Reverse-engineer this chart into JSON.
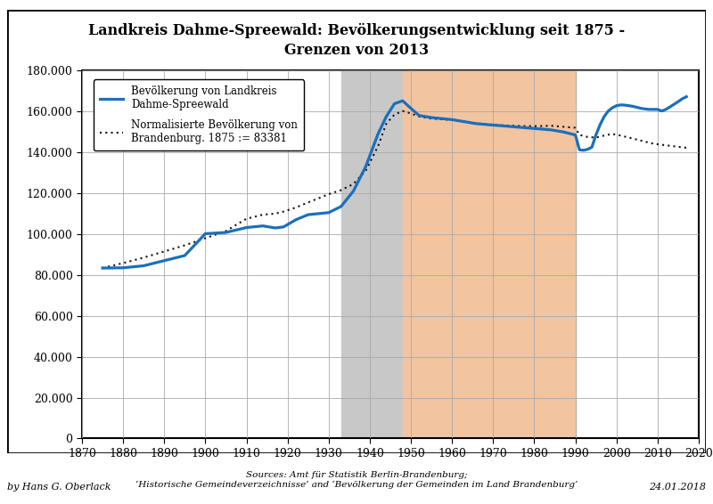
{
  "title": "Landkreis Dahme-Spreewald: Bevölkerungsentwicklung seit 1875 -\nGrenzen von 2013",
  "legend_line1": "Bevölkerung von Landkreis\nDahme-Spreewald",
  "legend_line2": "Normalisierte Bevölkerung von\nBrandenburg. 1875 := 83381",
  "source_text": "Sources: Amt für Statistik Berlin-Brandenburg;\n‘Historische Gemeindeverzeichnisse’ and ‘Bevölkerung der Gemeinden im Land Brandenburg’",
  "author_text": "by Hans G. Oberlack",
  "date_text": "24.01.2018",
  "xlim": [
    1870,
    2020
  ],
  "ylim": [
    0,
    180000
  ],
  "yticks": [
    0,
    20000,
    40000,
    60000,
    80000,
    100000,
    120000,
    140000,
    160000,
    180000
  ],
  "ytick_labels": [
    "0",
    "20.000",
    "40.000",
    "60.000",
    "80.000",
    "100.000",
    "120.000",
    "140.000",
    "160.000",
    "180.000"
  ],
  "xticks": [
    1870,
    1880,
    1890,
    1900,
    1910,
    1920,
    1930,
    1940,
    1950,
    1960,
    1970,
    1980,
    1990,
    2000,
    2010,
    2020
  ],
  "gray_region_start": 1933,
  "gray_region_end": 1948,
  "orange_region_start": 1948,
  "orange_region_end": 1990,
  "gray_color": "#c8c8c8",
  "orange_color": "#f2c4a0",
  "line1_color": "#1a6fbd",
  "line2_color": "#111111",
  "bg_color": "#ffffff",
  "grid_color": "#aaaaaa",
  "pop_data": [
    [
      1875,
      83381
    ],
    [
      1880,
      83500
    ],
    [
      1885,
      84500
    ],
    [
      1890,
      87000
    ],
    [
      1895,
      89500
    ],
    [
      1900,
      100200
    ],
    [
      1905,
      100800
    ],
    [
      1910,
      103200
    ],
    [
      1914,
      104000
    ],
    [
      1917,
      103000
    ],
    [
      1919,
      103500
    ],
    [
      1922,
      107000
    ],
    [
      1925,
      109500
    ],
    [
      1930,
      110500
    ],
    [
      1933,
      113500
    ],
    [
      1936,
      121000
    ],
    [
      1939,
      133000
    ],
    [
      1942,
      149000
    ],
    [
      1944,
      157500
    ],
    [
      1946,
      163800
    ],
    [
      1948,
      165200
    ],
    [
      1950,
      161500
    ],
    [
      1952,
      158000
    ],
    [
      1955,
      157000
    ],
    [
      1960,
      156000
    ],
    [
      1963,
      155000
    ],
    [
      1966,
      154000
    ],
    [
      1969,
      153500
    ],
    [
      1972,
      153000
    ],
    [
      1975,
      152500
    ],
    [
      1978,
      152000
    ],
    [
      1981,
      151500
    ],
    [
      1984,
      151000
    ],
    [
      1987,
      150000
    ],
    [
      1990,
      148500
    ],
    [
      1991,
      141200
    ],
    [
      1992,
      141000
    ],
    [
      1993,
      141500
    ],
    [
      1994,
      142500
    ],
    [
      1995,
      148500
    ],
    [
      1996,
      153500
    ],
    [
      1997,
      157500
    ],
    [
      1998,
      160200
    ],
    [
      1999,
      161800
    ],
    [
      2000,
      162800
    ],
    [
      2001,
      163200
    ],
    [
      2002,
      163100
    ],
    [
      2003,
      162800
    ],
    [
      2004,
      162500
    ],
    [
      2005,
      162000
    ],
    [
      2006,
      161500
    ],
    [
      2007,
      161200
    ],
    [
      2008,
      161000
    ],
    [
      2009,
      161000
    ],
    [
      2010,
      161000
    ],
    [
      2011,
      160200
    ],
    [
      2012,
      161000
    ],
    [
      2013,
      162200
    ],
    [
      2014,
      163500
    ],
    [
      2015,
      164800
    ],
    [
      2016,
      166200
    ],
    [
      2017,
      167200
    ]
  ],
  "norm_data": [
    [
      1875,
      83381
    ],
    [
      1880,
      85800
    ],
    [
      1885,
      88500
    ],
    [
      1890,
      91500
    ],
    [
      1895,
      94500
    ],
    [
      1900,
      98000
    ],
    [
      1905,
      101500
    ],
    [
      1910,
      107500
    ],
    [
      1914,
      109500
    ],
    [
      1917,
      110000
    ],
    [
      1919,
      111000
    ],
    [
      1922,
      113000
    ],
    [
      1925,
      115500
    ],
    [
      1930,
      119500
    ],
    [
      1933,
      121500
    ],
    [
      1936,
      124500
    ],
    [
      1939,
      131000
    ],
    [
      1942,
      143000
    ],
    [
      1944,
      154000
    ],
    [
      1946,
      158500
    ],
    [
      1948,
      160200
    ],
    [
      1950,
      159000
    ],
    [
      1952,
      157500
    ],
    [
      1955,
      156500
    ],
    [
      1960,
      155800
    ],
    [
      1963,
      154800
    ],
    [
      1966,
      154200
    ],
    [
      1969,
      153500
    ],
    [
      1972,
      153200
    ],
    [
      1975,
      153000
    ],
    [
      1978,
      152800
    ],
    [
      1981,
      152800
    ],
    [
      1984,
      153000
    ],
    [
      1987,
      152500
    ],
    [
      1990,
      152000
    ],
    [
      1991,
      148500
    ],
    [
      1993,
      147500
    ],
    [
      1995,
      147200
    ],
    [
      1997,
      148200
    ],
    [
      1999,
      149000
    ],
    [
      2001,
      148200
    ],
    [
      2003,
      147200
    ],
    [
      2005,
      146200
    ],
    [
      2007,
      145200
    ],
    [
      2009,
      144200
    ],
    [
      2011,
      143700
    ],
    [
      2013,
      143200
    ],
    [
      2015,
      142700
    ],
    [
      2017,
      142200
    ]
  ]
}
